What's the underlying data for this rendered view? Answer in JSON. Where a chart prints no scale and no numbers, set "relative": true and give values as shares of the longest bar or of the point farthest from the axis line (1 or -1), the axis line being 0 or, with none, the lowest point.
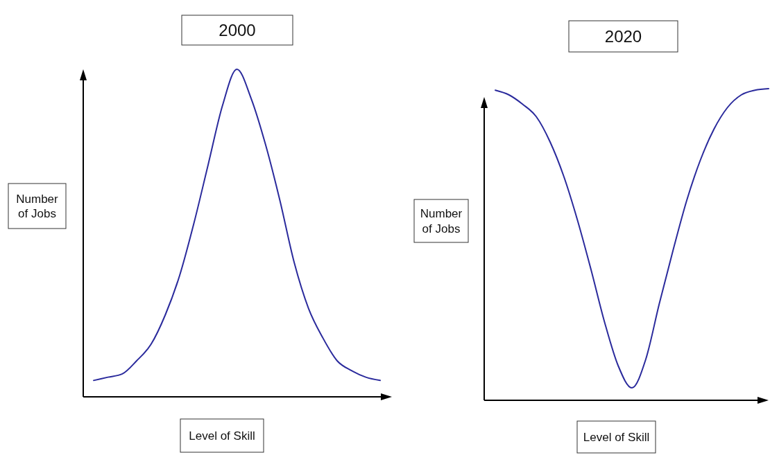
{
  "chart_data": [
    {
      "type": "line",
      "title": "2000",
      "xlabel": "Level of Skill",
      "ylabel": "Number\nof Jobs",
      "relative": true,
      "categories": [
        null,
        null,
        null,
        null,
        null,
        null,
        null,
        null,
        null,
        null,
        null,
        null,
        null,
        null,
        null,
        null,
        null,
        null,
        null,
        null,
        null
      ],
      "series": [
        {
          "color": "#2a2a9c",
          "values": [
            0.05,
            0.06,
            0.07,
            0.11,
            0.16,
            0.25,
            0.37,
            0.53,
            0.71,
            0.89,
            1,
            0.91,
            0.77,
            0.6,
            0.41,
            0.27,
            0.18,
            0.11,
            0.08,
            0.06,
            0.05
          ]
        }
      ]
    },
    {
      "type": "line",
      "title": "2020",
      "xlabel": "Level of Skill",
      "ylabel": "Number\nof Jobs",
      "relative": true,
      "categories": [
        null,
        null,
        null,
        null,
        null,
        null,
        null,
        null,
        null,
        null,
        null,
        null,
        null,
        null,
        null,
        null,
        null,
        null,
        null,
        null,
        null
      ],
      "series": [
        {
          "color": "#2a2a9c",
          "values": [
            0.995,
            0.98,
            0.95,
            0.91,
            0.83,
            0.72,
            0.58,
            0.42,
            0.25,
            0.11,
            0.04,
            0.13,
            0.31,
            0.48,
            0.64,
            0.77,
            0.87,
            0.94,
            0.98,
            0.995,
            1
          ]
        }
      ]
    }
  ]
}
